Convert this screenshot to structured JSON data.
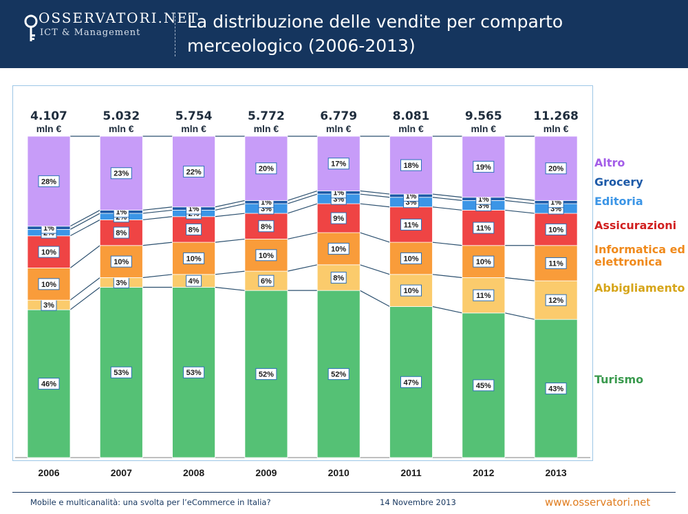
{
  "header": {
    "logo_name": "OSSERVATORI.NET",
    "logo_sub": "ICT & Management",
    "title": "La distribuzione delle vendite per comparto merceologico (2006-2013)"
  },
  "footer": {
    "left": "Mobile e multicanalità: una svolta per l’eCommerce in Italia?",
    "date": "14 Novembre 2013",
    "url": "www.osservatori.net"
  },
  "chart_data": {
    "type": "bar",
    "stacked": true,
    "normalized": true,
    "categories": [
      "2006",
      "2007",
      "2008",
      "2009",
      "2010",
      "2011",
      "2012",
      "2013"
    ],
    "totals": [
      "4.107",
      "5.032",
      "5.754",
      "5.772",
      "6.779",
      "8.081",
      "9.565",
      "11.268"
    ],
    "total_unit": "mln €",
    "series": [
      {
        "name": "Turismo",
        "color": "#55c175",
        "label_color": "#3a9a4e",
        "values": [
          46,
          53,
          53,
          52,
          52,
          47,
          45,
          43
        ],
        "labels": [
          "46%",
          "53%",
          "53%",
          "52%",
          "52%",
          "47%",
          "45%",
          "43%"
        ]
      },
      {
        "name": "Abbigliamento",
        "color": "#fbcb6c",
        "label_color": "#d6a51a",
        "values": [
          3,
          3,
          4,
          6,
          8,
          10,
          11,
          12
        ],
        "labels": [
          "3%",
          "3%",
          "4%",
          "6%",
          "8%",
          "10%",
          "11%",
          "12%"
        ]
      },
      {
        "name": "Informatica ed elettronica",
        "color": "#f99c3a",
        "label_color": "#f08a1c",
        "values": [
          10,
          10,
          10,
          10,
          10,
          10,
          10,
          11
        ],
        "labels": [
          "10%",
          "10%",
          "10%",
          "10%",
          "10%",
          "10%",
          "10%",
          "11%"
        ]
      },
      {
        "name": "Assicurazioni",
        "color": "#ef4444",
        "label_color": "#d12020",
        "values": [
          10,
          8,
          8,
          8,
          9,
          11,
          11,
          10
        ],
        "labels": [
          "10%",
          "8%",
          "8%",
          "8%",
          "9%",
          "11%",
          "11%",
          "10%"
        ]
      },
      {
        "name": "Editoria",
        "color": "#3b95e6",
        "label_color": "#3b95e6",
        "values": [
          2,
          2,
          2,
          3,
          3,
          3,
          3,
          3
        ],
        "labels": [
          "2%",
          "2%",
          "2%",
          "3%",
          "3%",
          "3%",
          "3%",
          "3%"
        ]
      },
      {
        "name": "Grocery",
        "color": "#1d5aa8",
        "label_color": "#1d5aa8",
        "values": [
          1,
          1,
          1,
          1,
          1,
          1,
          1,
          1
        ],
        "labels": [
          "1%",
          "1%",
          "1%",
          "1%",
          "1%",
          "1%",
          "1%",
          "1%"
        ]
      },
      {
        "name": "Altro",
        "color": "#c79cf8",
        "label_color": "#a35de8",
        "values": [
          28,
          23,
          22,
          20,
          17,
          18,
          19,
          20
        ],
        "labels": [
          "28%",
          "23%",
          "22%",
          "20%",
          "17%",
          "18%",
          "19%",
          "20%"
        ]
      }
    ],
    "ylim": [
      0,
      100
    ],
    "title": "",
    "xlabel": "",
    "ylabel": "",
    "legend": "right"
  }
}
